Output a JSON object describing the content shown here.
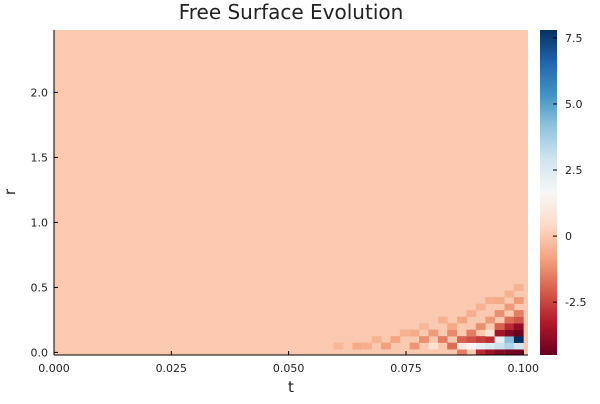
{
  "chart_data": {
    "type": "heatmap",
    "title": "Free Surface Evolution",
    "xlabel": "t",
    "ylabel": "r",
    "xlim": [
      0.0,
      0.101
    ],
    "ylim": [
      -0.02,
      2.48
    ],
    "x_ticks": [
      "0.000",
      "0.025",
      "0.050",
      "0.075",
      "0.100"
    ],
    "x_tick_values": [
      0.0,
      0.025,
      0.05,
      0.075,
      0.1
    ],
    "y_ticks": [
      "0.0",
      "0.5",
      "1.0",
      "1.5",
      "2.0"
    ],
    "y_tick_values": [
      0.0,
      0.5,
      1.0,
      1.5,
      2.0
    ],
    "colorbar": {
      "colormap": "RdBu",
      "range": [
        -4.5,
        7.8
      ],
      "ticks": [
        "-2.5",
        "0",
        "2.5",
        "5.0",
        "7.5"
      ],
      "tick_values": [
        -2.5,
        0,
        2.5,
        5.0,
        7.5
      ]
    },
    "background_value": 0,
    "cell_width_t": 0.00202,
    "cell_height_r": 0.05,
    "anomalies": [
      {
        "t": 0.0606,
        "r": 0.05,
        "v": -0.4
      },
      {
        "t": 0.0646,
        "r": 0.05,
        "v": -0.7
      },
      {
        "t": 0.0667,
        "r": 0.05,
        "v": -0.6
      },
      {
        "t": 0.0687,
        "r": 0.1,
        "v": -0.5
      },
      {
        "t": 0.0707,
        "r": 0.05,
        "v": -0.9
      },
      {
        "t": 0.0727,
        "r": 0.1,
        "v": -0.8
      },
      {
        "t": 0.0747,
        "r": 0.15,
        "v": -0.5
      },
      {
        "t": 0.0768,
        "r": 0.05,
        "v": -1.1
      },
      {
        "t": 0.0768,
        "r": 0.15,
        "v": -0.7
      },
      {
        "t": 0.0788,
        "r": 0.1,
        "v": -1.2
      },
      {
        "t": 0.0788,
        "r": 0.2,
        "v": -0.4
      },
      {
        "t": 0.0808,
        "r": 0.05,
        "v": 0.6
      },
      {
        "t": 0.0808,
        "r": 0.15,
        "v": -1.0
      },
      {
        "t": 0.0828,
        "r": 0.1,
        "v": -1.5
      },
      {
        "t": 0.0828,
        "r": 0.25,
        "v": -0.5
      },
      {
        "t": 0.0848,
        "r": 0.05,
        "v": -1.8
      },
      {
        "t": 0.0848,
        "r": 0.15,
        "v": -1.3
      },
      {
        "t": 0.0848,
        "r": 0.2,
        "v": -0.7
      },
      {
        "t": 0.0869,
        "r": 0.0,
        "v": -1.5
      },
      {
        "t": 0.0869,
        "r": 0.05,
        "v": 1.0
      },
      {
        "t": 0.0869,
        "r": 0.1,
        "v": -2.0
      },
      {
        "t": 0.0869,
        "r": 0.25,
        "v": -0.8
      },
      {
        "t": 0.0889,
        "r": 0.05,
        "v": 1.5
      },
      {
        "t": 0.0889,
        "r": 0.1,
        "v": -2.3
      },
      {
        "t": 0.0889,
        "r": 0.15,
        "v": -1.5
      },
      {
        "t": 0.0889,
        "r": 0.3,
        "v": -0.6
      },
      {
        "t": 0.0909,
        "r": 0.0,
        "v": -3.0
      },
      {
        "t": 0.0909,
        "r": 0.05,
        "v": 2.2
      },
      {
        "t": 0.0909,
        "r": 0.1,
        "v": -2.6
      },
      {
        "t": 0.0909,
        "r": 0.2,
        "v": -1.2
      },
      {
        "t": 0.0909,
        "r": 0.35,
        "v": -0.5
      },
      {
        "t": 0.0929,
        "r": 0.0,
        "v": -3.6
      },
      {
        "t": 0.0929,
        "r": 0.05,
        "v": 2.6
      },
      {
        "t": 0.0929,
        "r": 0.1,
        "v": -2.9
      },
      {
        "t": 0.0929,
        "r": 0.15,
        "v": 0.8
      },
      {
        "t": 0.0929,
        "r": 0.25,
        "v": -1.0
      },
      {
        "t": 0.0929,
        "r": 0.4,
        "v": -0.6
      },
      {
        "t": 0.0949,
        "r": 0.0,
        "v": -4.0
      },
      {
        "t": 0.0949,
        "r": 0.05,
        "v": 3.0
      },
      {
        "t": 0.0949,
        "r": 0.1,
        "v": 2.2
      },
      {
        "t": 0.0949,
        "r": 0.15,
        "v": -3.5
      },
      {
        "t": 0.0949,
        "r": 0.2,
        "v": -2.0
      },
      {
        "t": 0.0949,
        "r": 0.3,
        "v": -1.2
      },
      {
        "t": 0.0949,
        "r": 0.4,
        "v": -0.7
      },
      {
        "t": 0.097,
        "r": 0.0,
        "v": -4.2
      },
      {
        "t": 0.097,
        "r": 0.05,
        "v": 3.5
      },
      {
        "t": 0.097,
        "r": 0.1,
        "v": 4.2
      },
      {
        "t": 0.097,
        "r": 0.15,
        "v": -4.0
      },
      {
        "t": 0.097,
        "r": 0.2,
        "v": -3.0
      },
      {
        "t": 0.097,
        "r": 0.25,
        "v": -1.8
      },
      {
        "t": 0.097,
        "r": 0.35,
        "v": -1.0
      },
      {
        "t": 0.097,
        "r": 0.45,
        "v": -0.5
      },
      {
        "t": 0.099,
        "r": 0.0,
        "v": -4.3
      },
      {
        "t": 0.099,
        "r": 0.05,
        "v": 2.8
      },
      {
        "t": 0.099,
        "r": 0.1,
        "v": 7.8
      },
      {
        "t": 0.099,
        "r": 0.15,
        "v": -4.4
      },
      {
        "t": 0.099,
        "r": 0.2,
        "v": -3.8
      },
      {
        "t": 0.099,
        "r": 0.25,
        "v": -2.2
      },
      {
        "t": 0.099,
        "r": 0.3,
        "v": -1.5
      },
      {
        "t": 0.099,
        "r": 0.4,
        "v": -1.0
      },
      {
        "t": 0.099,
        "r": 0.5,
        "v": -0.5
      }
    ]
  }
}
